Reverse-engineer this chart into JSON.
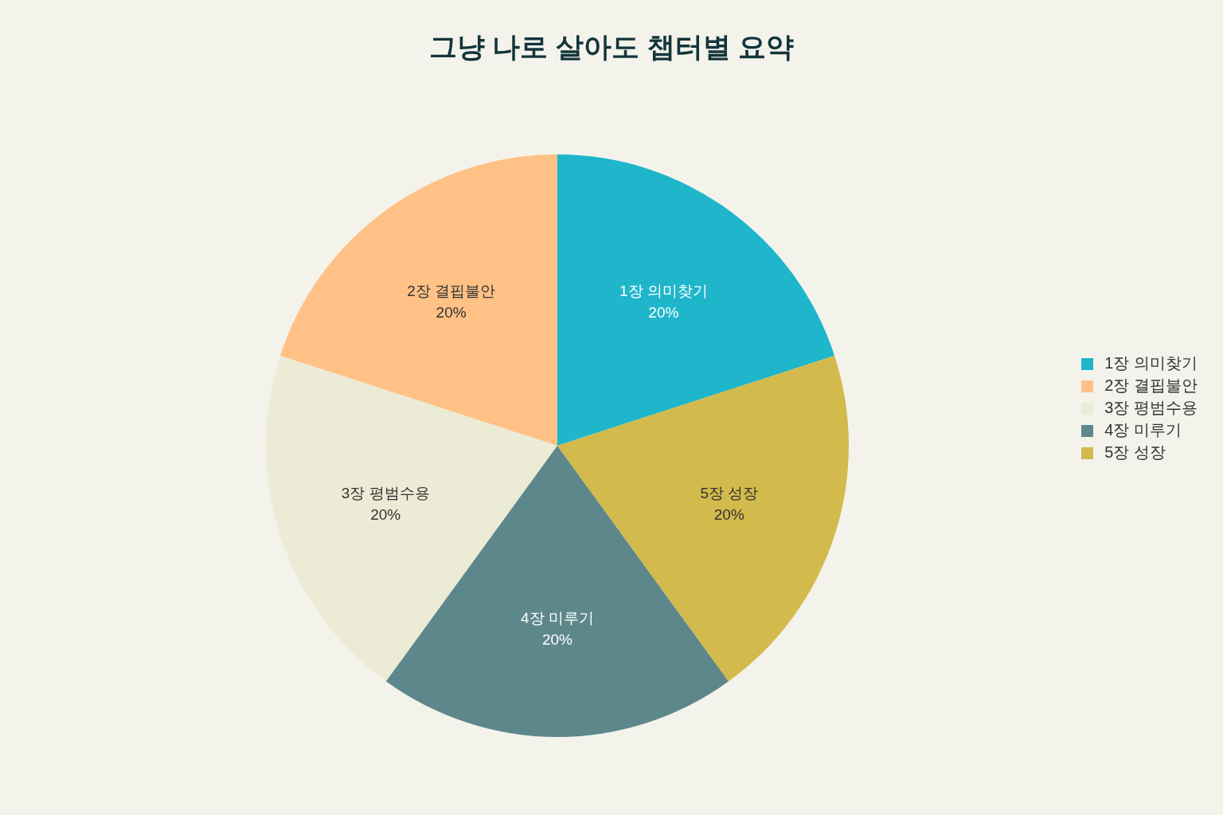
{
  "chart_data": {
    "type": "pie",
    "title": "그냥 나로 살아도 챕터별 요약",
    "categories": [
      "1장 의미찾기",
      "2장 결핍불안",
      "3장 평범수용",
      "4장 미루기",
      "5장 성장"
    ],
    "values": [
      20,
      20,
      20,
      20,
      20
    ],
    "value_labels": [
      "20%",
      "20%",
      "20%",
      "20%",
      "20%"
    ],
    "colors": [
      "#1fb6cb",
      "#ffc185",
      "#ecebd5",
      "#5d878b",
      "#d2ba4c"
    ],
    "legend": "right"
  }
}
